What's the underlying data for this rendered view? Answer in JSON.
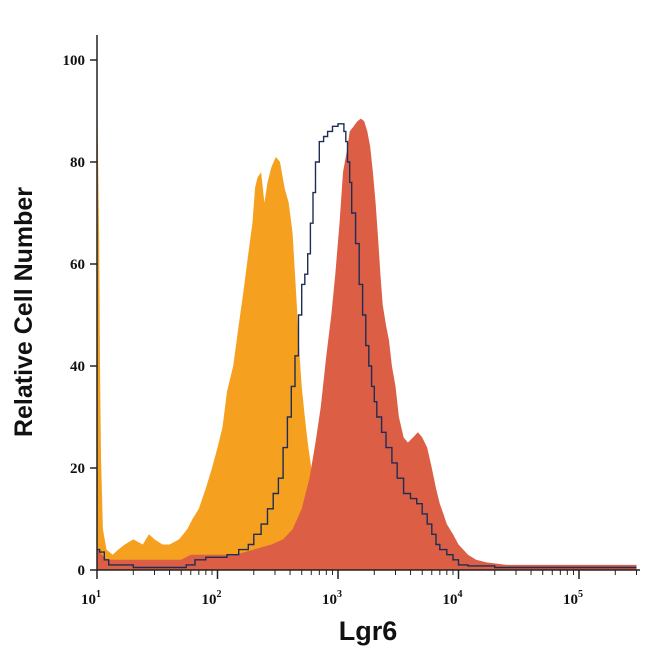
{
  "chart_data": {
    "type": "area",
    "title": "",
    "xlabel": "Lgr6",
    "ylabel": "Relative Cell Number",
    "x_scale": "log",
    "xlim": [
      10,
      300000
    ],
    "ylim": [
      0,
      100
    ],
    "grid": false,
    "x_ticks": [
      {
        "value": 10,
        "base": "10",
        "exp": "1"
      },
      {
        "value": 100,
        "base": "10",
        "exp": "2"
      },
      {
        "value": 1000,
        "base": "10",
        "exp": "3"
      },
      {
        "value": 10000,
        "base": "10",
        "exp": "4"
      },
      {
        "value": 100000,
        "base": "10",
        "exp": "5"
      }
    ],
    "y_ticks": [
      0,
      20,
      40,
      60,
      80,
      100
    ],
    "series": [
      {
        "style": "filled",
        "color": "#F5A01F",
        "points": [
          [
            10,
            97
          ],
          [
            10.2,
            82
          ],
          [
            10.4,
            66
          ],
          [
            10.6,
            40
          ],
          [
            10.8,
            22
          ],
          [
            11.2,
            8
          ],
          [
            12,
            4
          ],
          [
            13.5,
            3
          ],
          [
            15,
            4
          ],
          [
            17,
            5
          ],
          [
            20,
            6
          ],
          [
            24,
            5
          ],
          [
            27,
            7
          ],
          [
            30,
            6
          ],
          [
            35,
            5
          ],
          [
            40,
            5
          ],
          [
            48,
            6
          ],
          [
            56,
            8
          ],
          [
            62,
            10
          ],
          [
            70,
            12
          ],
          [
            80,
            16
          ],
          [
            90,
            20
          ],
          [
            100,
            24
          ],
          [
            110,
            28
          ],
          [
            120,
            35
          ],
          [
            135,
            40
          ],
          [
            150,
            48
          ],
          [
            165,
            55
          ],
          [
            180,
            62
          ],
          [
            195,
            68
          ],
          [
            205,
            75
          ],
          [
            215,
            77
          ],
          [
            230,
            78
          ],
          [
            245,
            72
          ],
          [
            260,
            76
          ],
          [
            280,
            79
          ],
          [
            305,
            81
          ],
          [
            330,
            80
          ],
          [
            360,
            75
          ],
          [
            390,
            72
          ],
          [
            420,
            66
          ],
          [
            440,
            58
          ],
          [
            460,
            50
          ],
          [
            480,
            42
          ],
          [
            500,
            36
          ],
          [
            530,
            30
          ],
          [
            560,
            25
          ],
          [
            600,
            20
          ],
          [
            640,
            16
          ],
          [
            680,
            12
          ],
          [
            720,
            9
          ],
          [
            760,
            6
          ],
          [
            800,
            3
          ],
          [
            850,
            0
          ]
        ]
      },
      {
        "style": "filled",
        "color": "#DB5E45",
        "points": [
          [
            10,
            4
          ],
          [
            11,
            3
          ],
          [
            12,
            2
          ],
          [
            14,
            2
          ],
          [
            20,
            2
          ],
          [
            30,
            2
          ],
          [
            40,
            2
          ],
          [
            50,
            2
          ],
          [
            60,
            3
          ],
          [
            80,
            3
          ],
          [
            100,
            3
          ],
          [
            140,
            3
          ],
          [
            200,
            4
          ],
          [
            280,
            5
          ],
          [
            350,
            6
          ],
          [
            420,
            8
          ],
          [
            500,
            12
          ],
          [
            580,
            18
          ],
          [
            650,
            25
          ],
          [
            720,
            32
          ],
          [
            800,
            42
          ],
          [
            880,
            50
          ],
          [
            950,
            58
          ],
          [
            1030,
            68
          ],
          [
            1100,
            78
          ],
          [
            1180,
            82
          ],
          [
            1250,
            86
          ],
          [
            1350,
            87
          ],
          [
            1450,
            88
          ],
          [
            1550,
            88.5
          ],
          [
            1650,
            88
          ],
          [
            1750,
            86
          ],
          [
            1850,
            83
          ],
          [
            1950,
            78
          ],
          [
            2050,
            72
          ],
          [
            2150,
            65
          ],
          [
            2250,
            58
          ],
          [
            2350,
            52
          ],
          [
            2500,
            48
          ],
          [
            2650,
            45
          ],
          [
            2800,
            40
          ],
          [
            3000,
            36
          ],
          [
            3200,
            30
          ],
          [
            3500,
            26
          ],
          [
            3800,
            25
          ],
          [
            4200,
            26
          ],
          [
            4600,
            27
          ],
          [
            5000,
            26
          ],
          [
            5500,
            24
          ],
          [
            6000,
            20
          ],
          [
            6500,
            16
          ],
          [
            7000,
            13
          ],
          [
            7500,
            11
          ],
          [
            8000,
            9
          ],
          [
            9000,
            7
          ],
          [
            10000,
            5
          ],
          [
            12000,
            3
          ],
          [
            14000,
            2
          ],
          [
            17000,
            1.5
          ],
          [
            25000,
            1
          ],
          [
            50000,
            1
          ],
          [
            100000,
            1
          ],
          [
            300000,
            1
          ]
        ]
      },
      {
        "style": "line",
        "color": "#1E2D55",
        "points": [
          [
            10,
            4
          ],
          [
            10.5,
            3.5
          ],
          [
            11.5,
            2
          ],
          [
            12.5,
            1
          ],
          [
            20,
            0.5
          ],
          [
            30,
            0.5
          ],
          [
            45,
            0.5
          ],
          [
            55,
            1
          ],
          [
            65,
            2
          ],
          [
            80,
            2.5
          ],
          [
            100,
            2.5
          ],
          [
            120,
            3
          ],
          [
            150,
            4
          ],
          [
            180,
            5
          ],
          [
            200,
            7
          ],
          [
            230,
            9
          ],
          [
            260,
            12
          ],
          [
            290,
            15
          ],
          [
            320,
            18
          ],
          [
            350,
            24
          ],
          [
            380,
            30
          ],
          [
            410,
            36
          ],
          [
            440,
            42
          ],
          [
            470,
            50
          ],
          [
            500,
            56
          ],
          [
            530,
            58
          ],
          [
            560,
            62
          ],
          [
            590,
            68
          ],
          [
            620,
            74
          ],
          [
            650,
            80
          ],
          [
            700,
            84
          ],
          [
            760,
            85
          ],
          [
            820,
            86
          ],
          [
            900,
            87
          ],
          [
            1000,
            87.5
          ],
          [
            1080,
            87.5
          ],
          [
            1120,
            86
          ],
          [
            1160,
            84
          ],
          [
            1200,
            80
          ],
          [
            1250,
            76
          ],
          [
            1300,
            70
          ],
          [
            1400,
            64
          ],
          [
            1500,
            56
          ],
          [
            1600,
            50
          ],
          [
            1700,
            44
          ],
          [
            1800,
            40
          ],
          [
            1900,
            36
          ],
          [
            2000,
            33
          ],
          [
            2100,
            30
          ],
          [
            2300,
            27
          ],
          [
            2500,
            24
          ],
          [
            2800,
            21
          ],
          [
            3100,
            18
          ],
          [
            3500,
            15
          ],
          [
            4000,
            14
          ],
          [
            4500,
            13
          ],
          [
            5000,
            11
          ],
          [
            5500,
            9
          ],
          [
            6000,
            7
          ],
          [
            6500,
            5
          ],
          [
            7000,
            4
          ],
          [
            8000,
            3
          ],
          [
            9000,
            2
          ],
          [
            10000,
            1
          ],
          [
            12000,
            0.8
          ],
          [
            20000,
            0.5
          ],
          [
            50000,
            0.5
          ],
          [
            300000,
            0.5
          ]
        ]
      }
    ]
  }
}
